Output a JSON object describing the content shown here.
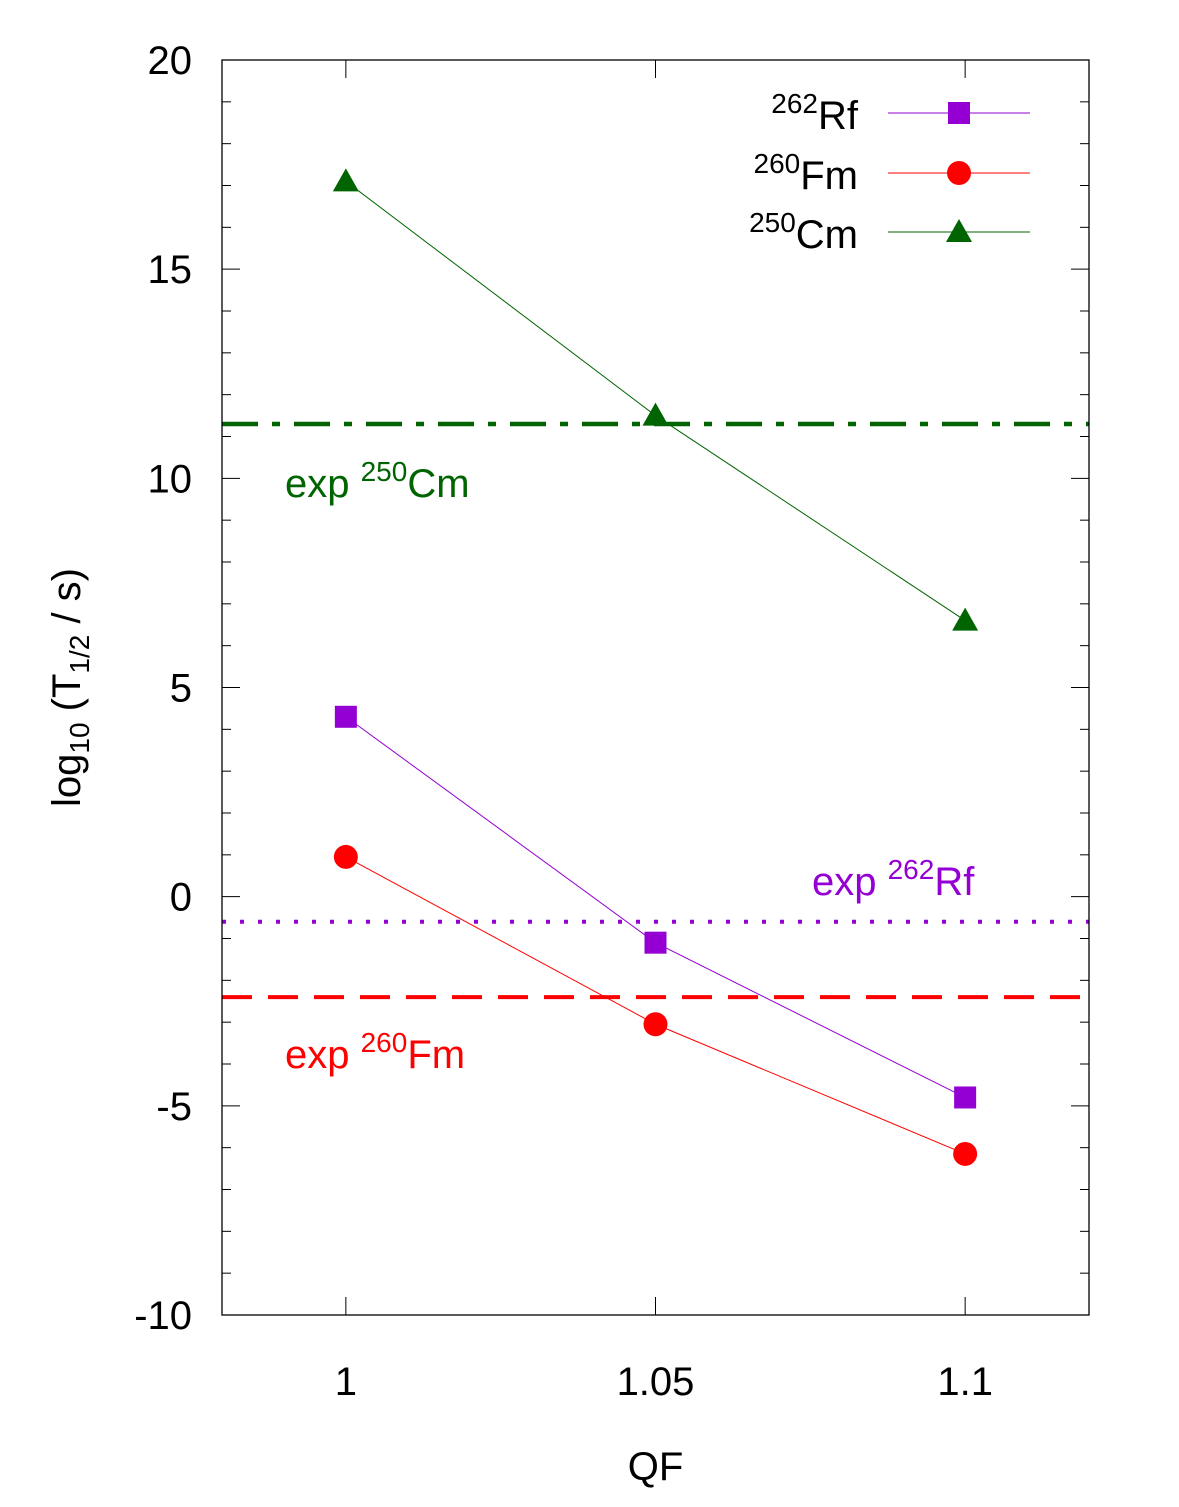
{
  "chart_data": {
    "type": "line",
    "xlabel": "QF",
    "ylabel": {
      "base": "log",
      "base_sub": "10",
      "open": " (T",
      "t_sub": "1/2",
      "close": " / s)"
    },
    "xlim": [
      0.98,
      1.12
    ],
    "ylim": [
      -10,
      20
    ],
    "x_ticks": [
      1,
      1.05,
      1.1
    ],
    "x_tick_labels": [
      "1",
      "1.05",
      "1.1"
    ],
    "y_ticks": [
      -10,
      -5,
      0,
      5,
      10,
      15,
      20
    ],
    "y_tick_labels": [
      "-10",
      "-5",
      "0",
      "5",
      "10",
      "15",
      "20"
    ],
    "y_minor_step": 1,
    "series": [
      {
        "key": "rf",
        "mass": "262",
        "element": "Rf",
        "color": "#9400d3",
        "marker": "square",
        "x": [
          1,
          1.05,
          1.1
        ],
        "values": [
          4.3,
          -1.1,
          -4.8
        ]
      },
      {
        "key": "fm",
        "mass": "260",
        "element": "Fm",
        "color": "#ff0000",
        "marker": "circle",
        "x": [
          1,
          1.05,
          1.1
        ],
        "values": [
          0.95,
          -3.05,
          -6.15
        ]
      },
      {
        "key": "cm",
        "mass": "250",
        "element": "Cm",
        "color": "#006400",
        "marker": "triangle",
        "x": [
          1,
          1.05,
          1.1
        ],
        "values": [
          17.1,
          11.5,
          6.6
        ]
      }
    ],
    "reference_lines": [
      {
        "key": "cm",
        "prefix": "exp ",
        "mass": "250",
        "element": "Cm",
        "value": 11.3,
        "color": "#006400",
        "style": "dash-dot"
      },
      {
        "key": "rf",
        "prefix": "exp ",
        "mass": "262",
        "element": "Rf",
        "value": -0.6,
        "color": "#9400d3",
        "style": "dotted"
      },
      {
        "key": "fm",
        "prefix": "exp ",
        "mass": "260",
        "element": "Fm",
        "value": -2.4,
        "color": "#ff0000",
        "style": "dashed"
      }
    ],
    "legend_position": "top-right"
  }
}
